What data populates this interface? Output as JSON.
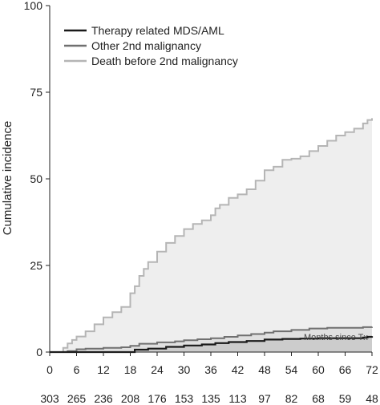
{
  "chart_data": {
    "type": "line",
    "ylabel": "Cumulative incidence",
    "xlim": [
      0,
      72
    ],
    "ylim": [
      0,
      100
    ],
    "x_ticks": [
      0,
      6,
      12,
      18,
      24,
      30,
      36,
      42,
      48,
      54,
      60,
      66,
      72
    ],
    "y_ticks": [
      0,
      25,
      50,
      75,
      100
    ],
    "grid": false,
    "legend_position": "top-left",
    "annotation": "Months since Tx",
    "at_risk": [
      303,
      265,
      236,
      208,
      176,
      153,
      135,
      113,
      97,
      82,
      68,
      59,
      48
    ],
    "series": [
      {
        "name": "Therapy related MDS/AML",
        "color": "#1a1a1a",
        "fill": "#cccccc",
        "x": [
          0,
          18,
          19,
          22,
          26,
          30,
          34,
          37,
          40,
          44,
          48,
          52,
          56,
          60,
          66,
          70,
          71,
          72
        ],
        "y": [
          0,
          0,
          0.7,
          1.0,
          1.5,
          1.9,
          2.2,
          2.6,
          2.9,
          3.2,
          3.6,
          3.8,
          3.9,
          4.0,
          4.0,
          4.2,
          4.4,
          4.6
        ]
      },
      {
        "name": "Other 2nd malignancy",
        "color": "#707070",
        "fill": "#e0e0e0",
        "x": [
          0,
          4,
          6,
          8,
          12,
          16,
          18,
          20,
          24,
          28,
          30,
          33,
          36,
          39,
          42,
          45,
          48,
          50,
          54,
          58,
          62,
          66,
          70,
          72
        ],
        "y": [
          0,
          0.3,
          0.8,
          1.0,
          1.2,
          1.4,
          1.8,
          2.4,
          2.8,
          3.1,
          3.4,
          3.7,
          4.0,
          4.4,
          4.8,
          5.2,
          5.6,
          6.0,
          6.4,
          6.8,
          7.0,
          7.0,
          7.2,
          7.3
        ]
      },
      {
        "name": "Death before 2nd malignancy",
        "color": "#b5b5b5",
        "fill": "#eeeeee",
        "x": [
          0,
          3,
          4,
          5,
          6,
          8,
          10,
          12,
          14,
          16,
          18,
          19,
          20,
          21,
          22,
          24,
          26,
          28,
          30,
          32,
          34,
          36,
          37,
          38,
          40,
          42,
          44,
          46,
          48,
          50,
          52,
          54,
          56,
          58,
          60,
          62,
          64,
          66,
          68,
          70,
          71,
          72
        ],
        "y": [
          0,
          1.2,
          2.5,
          3.5,
          4.5,
          6.0,
          8.0,
          10.0,
          11.5,
          13.0,
          17.0,
          19.0,
          22.0,
          24.0,
          26.0,
          29.0,
          31.5,
          33.5,
          35.5,
          37.0,
          38.0,
          39.5,
          41.5,
          42.5,
          44.5,
          45.5,
          47.0,
          49.5,
          52.5,
          53.5,
          55.5,
          55.8,
          56.5,
          58.0,
          59.5,
          61.0,
          62.5,
          63.5,
          64.5,
          66.0,
          67.0,
          67.5
        ]
      }
    ]
  }
}
